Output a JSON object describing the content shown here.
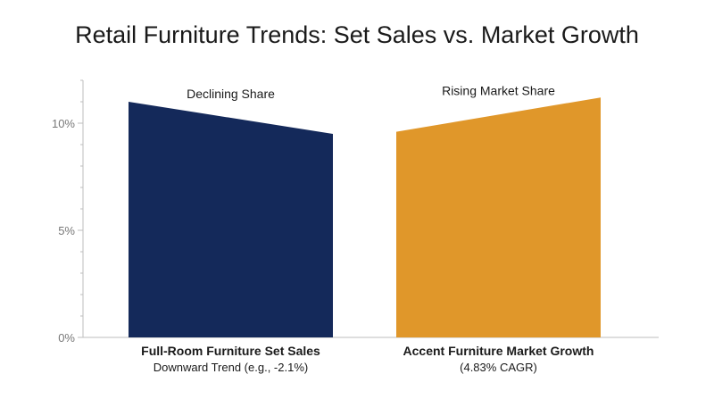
{
  "chart_data": {
    "type": "area",
    "title": "Retail Furniture Trends: Set Sales vs. Market Growth",
    "xlabel": "",
    "ylabel": "",
    "ylim": [
      0,
      12
    ],
    "yticks": [
      {
        "value": 0,
        "label": "0%"
      },
      {
        "value": 5,
        "label": "5%"
      },
      {
        "value": 10,
        "label": "10%"
      }
    ],
    "grid": false,
    "series": [
      {
        "category": "Full-Room Furniture Set Sales",
        "subtitle": "Downward Trend (e.g., -2.1%)",
        "annotation": "Declining Share",
        "start": 11.0,
        "end": 9.5,
        "color": "#14295a"
      },
      {
        "category": "Accent Furniture Market Growth",
        "subtitle": "(4.83% CAGR)",
        "annotation": "Rising Market Share",
        "start": 9.6,
        "end": 11.2,
        "color": "#e0972a"
      }
    ],
    "axis_color": "#bdbdbd",
    "text_color": "#1a1a1a",
    "tick_color": "#777777"
  }
}
